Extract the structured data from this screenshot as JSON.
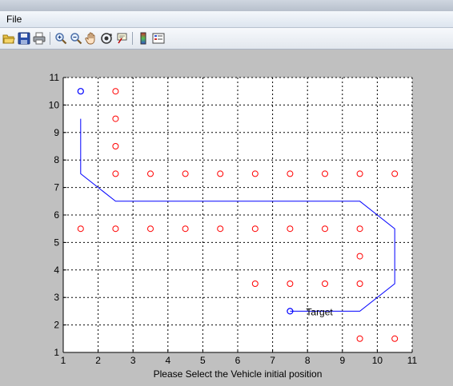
{
  "menubar": {
    "file_label": "File"
  },
  "toolbar": {
    "buttons": [
      "open-icon",
      "save-icon",
      "print-icon",
      "zoom-in-icon",
      "zoom-out-icon",
      "pan-icon",
      "rotate-3d-icon",
      "data-cursor-icon",
      "colorbar-icon",
      "legend-icon"
    ]
  },
  "chart_data": {
    "type": "scatter",
    "title": "",
    "xlabel": "Please Select the Vehicle initial position",
    "ylabel": "",
    "xlim": [
      1,
      11
    ],
    "ylim": [
      1,
      11
    ],
    "xticks": [
      1,
      2,
      3,
      4,
      5,
      6,
      7,
      8,
      9,
      10,
      11
    ],
    "yticks": [
      1,
      2,
      3,
      4,
      5,
      6,
      7,
      8,
      9,
      10,
      11
    ],
    "grid": true,
    "grid_style": "dotted",
    "obstacles": {
      "color": "#ff0000",
      "marker": "circle",
      "points": [
        [
          2.5,
          10.5
        ],
        [
          2.5,
          9.5
        ],
        [
          2.5,
          8.5
        ],
        [
          2.5,
          7.5
        ],
        [
          3.5,
          7.5
        ],
        [
          4.5,
          7.5
        ],
        [
          5.5,
          7.5
        ],
        [
          6.5,
          7.5
        ],
        [
          7.5,
          7.5
        ],
        [
          8.5,
          7.5
        ],
        [
          9.5,
          7.5
        ],
        [
          10.5,
          7.5
        ],
        [
          1.5,
          5.5
        ],
        [
          2.5,
          5.5
        ],
        [
          3.5,
          5.5
        ],
        [
          4.5,
          5.5
        ],
        [
          5.5,
          5.5
        ],
        [
          6.5,
          5.5
        ],
        [
          7.5,
          5.5
        ],
        [
          8.5,
          5.5
        ],
        [
          9.5,
          5.5
        ],
        [
          9.5,
          4.5
        ],
        [
          6.5,
          3.5
        ],
        [
          7.5,
          3.5
        ],
        [
          8.5,
          3.5
        ],
        [
          9.5,
          3.5
        ],
        [
          9.5,
          1.5
        ],
        [
          10.5,
          1.5
        ]
      ]
    },
    "start": {
      "color": "#0000ff",
      "marker": "circle",
      "point": [
        1.5,
        10.5
      ]
    },
    "target": {
      "color": "#0000ff",
      "marker": "circle",
      "point": [
        7.5,
        2.5
      ],
      "label": "Target"
    },
    "path": {
      "color": "#0000ff",
      "points": [
        [
          1.5,
          9.5
        ],
        [
          1.5,
          7.5
        ],
        [
          2.5,
          6.5
        ],
        [
          9.5,
          6.5
        ],
        [
          10.5,
          5.5
        ],
        [
          10.5,
          3.5
        ],
        [
          9.5,
          2.5
        ],
        [
          7.5,
          2.5
        ]
      ]
    }
  }
}
